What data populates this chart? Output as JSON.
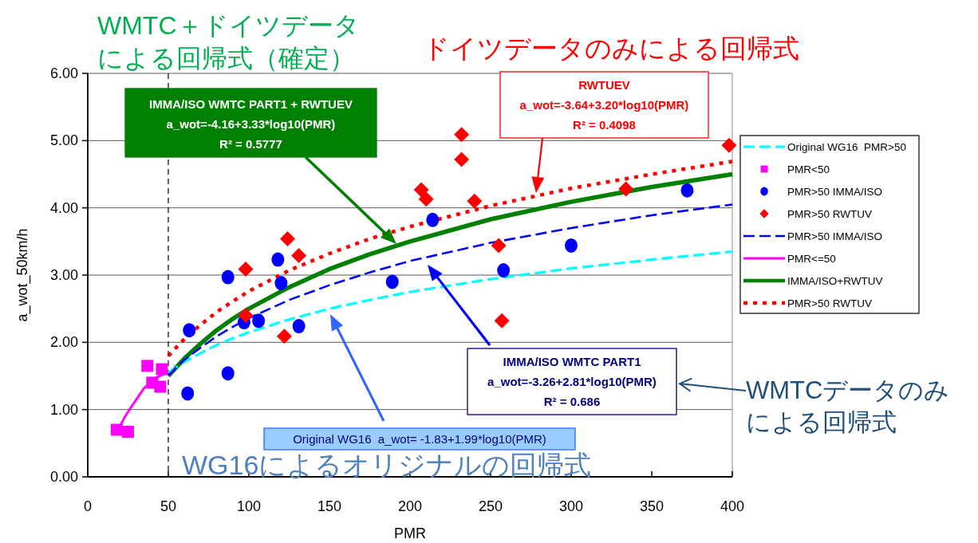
{
  "chart_data": {
    "type": "scatter",
    "xlabel": "PMR",
    "ylabel": "a_wot_50km/h",
    "xlim": [
      0,
      400
    ],
    "xticks": [
      0,
      50,
      100,
      150,
      200,
      250,
      300,
      350,
      400
    ],
    "ylim": [
      0,
      6
    ],
    "yticks": [
      {
        "value": 0,
        "label": "0.00"
      },
      {
        "value": 1,
        "label": "1.00"
      },
      {
        "value": 2,
        "label": "2.00"
      },
      {
        "value": 3,
        "label": "3.00"
      },
      {
        "value": 4,
        "label": "4.00"
      },
      {
        "value": 5,
        "label": "5.00"
      },
      {
        "value": 6,
        "label": "6.00"
      }
    ],
    "grid": "y",
    "legend": "right",
    "ref_lines": [
      {
        "axis": "x",
        "value": 50,
        "color": "#000000",
        "line_style": "dashed"
      }
    ],
    "series": [
      {
        "name": "Original WG16  PMR>50",
        "type": "line",
        "color": "#00ffff",
        "line_style": "dashed",
        "x": [
          50,
          60,
          70,
          80,
          90,
          100,
          125,
          150,
          175,
          200,
          250,
          300,
          350,
          400
        ],
        "values": [
          1.55,
          1.71,
          1.84,
          1.96,
          2.06,
          2.15,
          2.34,
          2.5,
          2.63,
          2.75,
          2.94,
          3.1,
          3.23,
          3.35
        ]
      },
      {
        "name": "PMR<50",
        "color": "#ff00ff",
        "marker": "square",
        "x": [
          18,
          25,
          37,
          40,
          45,
          46
        ],
        "values": [
          0.7,
          0.67,
          1.65,
          1.4,
          1.34,
          1.6
        ]
      },
      {
        "name": "PMR>50 IMMA/ISO",
        "color": "#0000ff",
        "marker": "circle",
        "x": [
          62,
          63,
          87,
          87,
          97,
          106,
          118,
          120,
          131,
          189,
          214,
          258,
          300,
          372
        ],
        "values": [
          1.24,
          2.18,
          1.54,
          2.97,
          2.3,
          2.32,
          3.23,
          2.88,
          2.24,
          2.9,
          3.82,
          3.07,
          3.44,
          4.26
        ]
      },
      {
        "name": "PMR>50 RWTUV",
        "color": "#ff0000",
        "marker": "diamond",
        "x": [
          98,
          98,
          122,
          124,
          131,
          207,
          210,
          232,
          232,
          240,
          255,
          257,
          334,
          398
        ],
        "values": [
          3.09,
          2.4,
          2.09,
          3.54,
          3.29,
          4.27,
          4.13,
          5.09,
          4.72,
          4.1,
          3.44,
          2.32,
          4.28,
          4.93
        ]
      },
      {
        "name": "PMR>50 IMMA/ISO",
        "type": "line",
        "color": "#0000ff",
        "line_style": "dashed",
        "x": [
          50,
          60,
          70,
          80,
          90,
          100,
          125,
          150,
          175,
          200,
          250,
          300,
          350,
          400
        ],
        "values": [
          1.51,
          1.74,
          1.92,
          2.09,
          2.23,
          2.36,
          2.63,
          2.85,
          3.04,
          3.21,
          3.48,
          3.7,
          3.89,
          4.05
        ]
      },
      {
        "name": "PMR<=50",
        "type": "line",
        "color": "#ff00ff",
        "line_style": "solid",
        "x": [
          20,
          23,
          27,
          35,
          43,
          50
        ],
        "values": [
          0.75,
          0.89,
          1.04,
          1.32,
          1.48,
          1.56
        ]
      },
      {
        "name": "IMMA/ISO+RWTUV",
        "type": "line",
        "color": "#008000",
        "line_style": "solid",
        "x": [
          50,
          60,
          70,
          80,
          90,
          100,
          125,
          150,
          175,
          200,
          250,
          300,
          350,
          400
        ],
        "values": [
          1.5,
          1.76,
          1.98,
          2.18,
          2.35,
          2.5,
          2.82,
          3.09,
          3.31,
          3.5,
          3.83,
          4.09,
          4.31,
          4.5
        ]
      },
      {
        "name": "PMR>50 RWTUV",
        "type": "line",
        "color": "#ff0000",
        "line_style": "dotted",
        "x": [
          50,
          60,
          70,
          80,
          90,
          100,
          125,
          150,
          175,
          200,
          250,
          300,
          350,
          400
        ],
        "values": [
          1.8,
          2.05,
          2.26,
          2.45,
          2.61,
          2.76,
          3.07,
          3.32,
          3.54,
          3.72,
          4.03,
          4.29,
          4.5,
          4.69
        ]
      }
    ],
    "annotations": [
      "WMTC＋ドイツデータ",
      "による回帰式（確定）",
      "ドイツデータのみによる回帰式",
      "IMMA/ISO WMTC PART1 + RWTUEV\na_wot=-4.16+3.33*log10(PMR)\nR² = 0.5777",
      "RWTUEV\na_wot=-3.64+3.20*log10(PMR)\nR² = 0.4098",
      "IMMA/ISO WMTC PART1\na_wot=-3.26+2.81*log10(PMR)\nR² = 0.686",
      "Original WG16  a_wot= -1.83+1.99*log10(PMR)",
      "WMTCデータのみ",
      "による回帰式",
      "WG16によるオリジナルの回帰式"
    ]
  }
}
